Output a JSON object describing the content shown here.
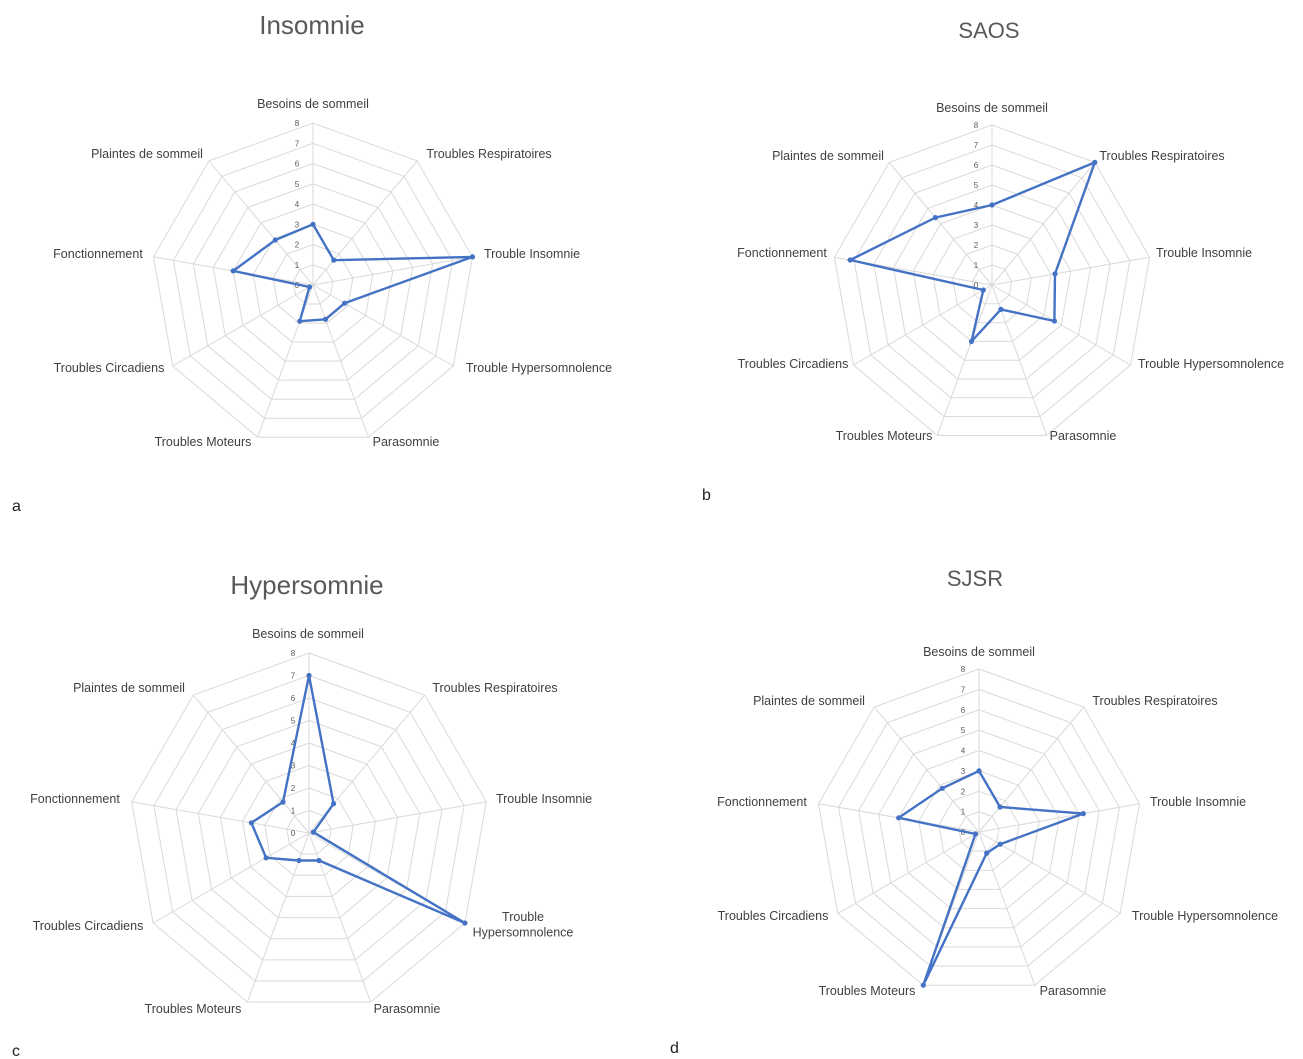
{
  "colors": {
    "series": "#4472c4",
    "grid": "#d9d9d9",
    "text": "#404040"
  },
  "panel_letters": [
    "a",
    "b",
    "c",
    "d"
  ],
  "chart_data": [
    {
      "type": "radar",
      "title": "Insomnie",
      "categories": [
        "Besoins de sommeil",
        "Troubles Respiratoires",
        "Trouble Insomnie",
        "Trouble Hypersomnolence",
        "Parasomnie",
        "Troubles Moteurs",
        "Troubles Circadiens",
        "Fonctionnement",
        "Plaintes de sommeil"
      ],
      "ticks": [
        "0",
        "1",
        "2",
        "3",
        "4",
        "5",
        "6",
        "7",
        "8"
      ],
      "range": [
        0,
        8
      ],
      "series": [
        {
          "values": [
            3,
            1.6,
            8,
            1.8,
            1.8,
            1.9,
            0.2,
            4,
            2.9
          ]
        }
      ]
    },
    {
      "type": "radar",
      "title": "SAOS",
      "categories": [
        "Besoins de sommeil",
        "Troubles Respiratoires",
        "Trouble Insomnie",
        "Trouble Hypersomnolence",
        "Parasomnie",
        "Troubles Moteurs",
        "Troubles Circadiens",
        "Fonctionnement",
        "Plaintes de sommeil"
      ],
      "ticks": [
        "0",
        "1",
        "2",
        "3",
        "4",
        "5",
        "6",
        "7",
        "8"
      ],
      "range": [
        0,
        8
      ],
      "series": [
        {
          "values": [
            4,
            8,
            3.2,
            3.6,
            1.3,
            3.0,
            0.5,
            7.2,
            4.4
          ]
        }
      ]
    },
    {
      "type": "radar",
      "title": "Hypersomnie",
      "categories": [
        "Besoins de sommeil",
        "Troubles Respiratoires",
        "Trouble Insomnie",
        "Trouble\nHypersomnolence",
        "Parasomnie",
        "Troubles Moteurs",
        "Troubles Circadiens",
        "Fonctionnement",
        "Plaintes de sommeil"
      ],
      "ticks": [
        "0",
        "1",
        "2",
        "3",
        "4",
        "5",
        "6",
        "7",
        "8"
      ],
      "range": [
        0,
        8
      ],
      "series": [
        {
          "values": [
            7,
            1.7,
            0.2,
            8,
            1.3,
            1.3,
            2.2,
            2.6,
            1.8
          ]
        }
      ]
    },
    {
      "type": "radar",
      "title": "SJSR",
      "categories": [
        "Besoins de sommeil",
        "Troubles Respiratoires",
        "Trouble Insomnie",
        "Trouble Hypersomnolence",
        "Parasomnie",
        "Troubles Moteurs",
        "Troubles Circadiens",
        "Fonctionnement",
        "Plaintes de sommeil"
      ],
      "ticks": [
        "0",
        "1",
        "2",
        "3",
        "4",
        "5",
        "6",
        "7",
        "8"
      ],
      "range": [
        0,
        8
      ],
      "series": [
        {
          "values": [
            3,
            1.6,
            5.2,
            1.2,
            1.1,
            8,
            0.2,
            4,
            2.8
          ]
        }
      ]
    }
  ]
}
